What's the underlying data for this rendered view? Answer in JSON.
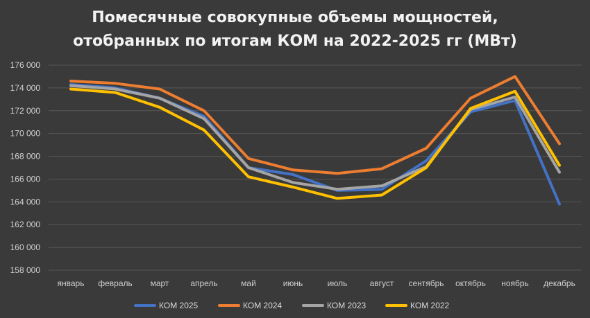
{
  "chart_data": {
    "type": "line",
    "title": "Помесячные совокупные объемы мощностей, отобранных по итогам КОМ на 2022-2025 гг (МВт)",
    "title_lines": [
      "Помесячные совокупные объемы мощностей,",
      "отобранных по итогам КОМ на 2022-2025 гг (МВт)"
    ],
    "categories": [
      "январь",
      "февраль",
      "март",
      "апрель",
      "май",
      "июнь",
      "июль",
      "август",
      "сентябрь",
      "октябрь",
      "ноябрь",
      "декабрь"
    ],
    "ylim": [
      158000,
      176000
    ],
    "yticks": [
      158000,
      160000,
      162000,
      164000,
      166000,
      168000,
      170000,
      172000,
      174000,
      176000
    ],
    "ytick_labels": [
      "158 000",
      "160 000",
      "162 000",
      "164 000",
      "166 000",
      "168 000",
      "170 000",
      "172 000",
      "174 000",
      "176 000"
    ],
    "grid": true,
    "legend_position": "bottom",
    "series": [
      {
        "name": "КОМ 2025",
        "color": "#4472c4",
        "values": [
          174300,
          174000,
          173100,
          171500,
          167000,
          166400,
          165000,
          165100,
          167600,
          171900,
          172900,
          163800
        ]
      },
      {
        "name": "КОМ 2024",
        "color": "#ed7d31",
        "values": [
          174600,
          174400,
          173900,
          172000,
          167800,
          166800,
          166500,
          166900,
          168700,
          173100,
          175000,
          169100
        ]
      },
      {
        "name": "КОМ 2023",
        "color": "#a5a5a5",
        "values": [
          174200,
          173900,
          173100,
          171300,
          167000,
          165700,
          165100,
          165400,
          167100,
          172100,
          173200,
          166600
        ]
      },
      {
        "name": "КОМ 2022",
        "color": "#ffc000",
        "values": [
          173900,
          173600,
          172300,
          170300,
          166200,
          165300,
          164300,
          164600,
          167000,
          172200,
          173700,
          167200
        ]
      }
    ]
  }
}
